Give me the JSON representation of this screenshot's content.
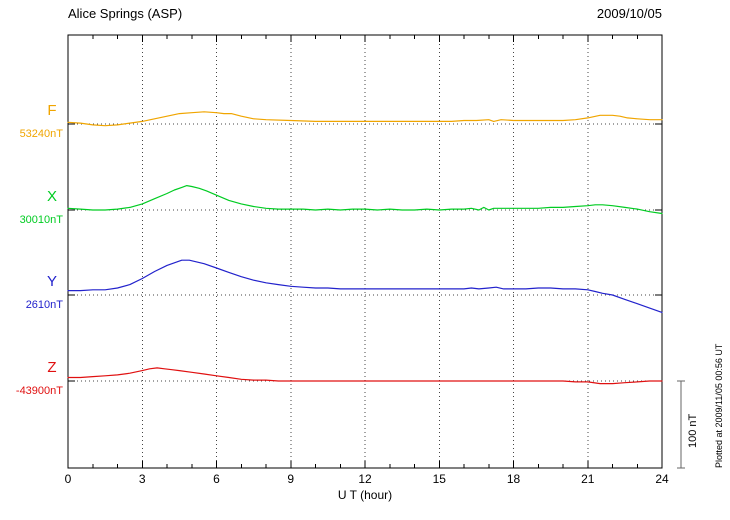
{
  "chart_data": {
    "type": "line",
    "title": "Alice Springs (ASP)",
    "date": "2009/10/05",
    "xlabel": "U T (hour)",
    "x_ticks": [
      0,
      3,
      6,
      9,
      12,
      15,
      18,
      21,
      24
    ],
    "xlim": [
      0,
      24
    ],
    "x_unit": "hour",
    "y_unit": "nT",
    "grid": "dotted vertical gridlines every 3 hours; dotted horizontal baseline per component",
    "legend_position": "left margin, one colored letter per trace with baseline value below",
    "scale_bar": {
      "label": "100 nT",
      "nT": 100
    },
    "plotted_at": "Plotted at 2009/11/05 00:56 UT",
    "points_format": "[UT hour, delta nT relative to component baseline]",
    "series": [
      {
        "name": "F",
        "color": "#F0A500",
        "baseline_label": "53240nT",
        "baseline_nT": 53240,
        "points": [
          [
            0,
            2
          ],
          [
            0.5,
            1
          ],
          [
            1,
            -1
          ],
          [
            1.5,
            -2
          ],
          [
            2,
            -1
          ],
          [
            2.5,
            1
          ],
          [
            3,
            3
          ],
          [
            3.5,
            6
          ],
          [
            4,
            9
          ],
          [
            4.5,
            12
          ],
          [
            5,
            13
          ],
          [
            5.5,
            14
          ],
          [
            6,
            13
          ],
          [
            6.3,
            12
          ],
          [
            6.6,
            12
          ],
          [
            7,
            9
          ],
          [
            7.5,
            6
          ],
          [
            8,
            5
          ],
          [
            9,
            4
          ],
          [
            10,
            3
          ],
          [
            11,
            3
          ],
          [
            12,
            3
          ],
          [
            13,
            3
          ],
          [
            14,
            3
          ],
          [
            15,
            3
          ],
          [
            15.5,
            3
          ],
          [
            16,
            4
          ],
          [
            16.5,
            4
          ],
          [
            17,
            5
          ],
          [
            17.2,
            3
          ],
          [
            17.5,
            5
          ],
          [
            18,
            4
          ],
          [
            18.5,
            4
          ],
          [
            19,
            4
          ],
          [
            19.5,
            4
          ],
          [
            20,
            4
          ],
          [
            20.5,
            5
          ],
          [
            21,
            7
          ],
          [
            21.5,
            10
          ],
          [
            22,
            10
          ],
          [
            22.3,
            9
          ],
          [
            22.6,
            7
          ],
          [
            23,
            6
          ],
          [
            23.5,
            5
          ],
          [
            24,
            5
          ]
        ]
      },
      {
        "name": "X",
        "color": "#00CC22",
        "baseline_label": "30010nT",
        "baseline_nT": 30010,
        "points": [
          [
            0,
            2
          ],
          [
            0.5,
            1
          ],
          [
            1,
            0
          ],
          [
            1.5,
            0
          ],
          [
            2,
            1
          ],
          [
            2.5,
            3
          ],
          [
            3,
            7
          ],
          [
            3.5,
            13
          ],
          [
            4,
            19
          ],
          [
            4.3,
            23
          ],
          [
            4.6,
            26
          ],
          [
            4.8,
            28
          ],
          [
            5,
            27
          ],
          [
            5.3,
            25
          ],
          [
            5.6,
            22
          ],
          [
            6,
            17
          ],
          [
            6.5,
            11
          ],
          [
            7,
            7
          ],
          [
            7.5,
            4
          ],
          [
            8,
            2
          ],
          [
            8.5,
            1
          ],
          [
            9,
            1
          ],
          [
            9.5,
            1
          ],
          [
            10,
            0
          ],
          [
            10.5,
            1
          ],
          [
            11,
            0
          ],
          [
            11.5,
            1
          ],
          [
            12,
            1
          ],
          [
            12.5,
            0
          ],
          [
            13,
            1
          ],
          [
            13.5,
            0
          ],
          [
            14,
            0
          ],
          [
            14.5,
            1
          ],
          [
            15,
            0
          ],
          [
            15.5,
            1
          ],
          [
            16,
            1
          ],
          [
            16.3,
            2
          ],
          [
            16.6,
            0
          ],
          [
            16.8,
            3
          ],
          [
            17,
            0
          ],
          [
            17.2,
            2
          ],
          [
            17.5,
            2
          ],
          [
            18,
            2
          ],
          [
            18.5,
            2
          ],
          [
            19,
            2
          ],
          [
            19.5,
            3
          ],
          [
            20,
            3
          ],
          [
            20.5,
            4
          ],
          [
            21,
            5
          ],
          [
            21.3,
            6
          ],
          [
            21.6,
            6
          ],
          [
            22,
            5
          ],
          [
            22.5,
            3
          ],
          [
            23,
            1
          ],
          [
            23.5,
            -2
          ],
          [
            24,
            -4
          ]
        ]
      },
      {
        "name": "Y",
        "color": "#2222CC",
        "baseline_label": "2610nT",
        "baseline_nT": 2610,
        "points": [
          [
            0,
            5
          ],
          [
            0.5,
            5
          ],
          [
            1,
            6
          ],
          [
            1.5,
            6
          ],
          [
            2,
            8
          ],
          [
            2.5,
            12
          ],
          [
            3,
            19
          ],
          [
            3.5,
            27
          ],
          [
            4,
            34
          ],
          [
            4.3,
            37
          ],
          [
            4.6,
            40
          ],
          [
            4.9,
            40
          ],
          [
            5.2,
            38
          ],
          [
            5.5,
            36
          ],
          [
            6,
            31
          ],
          [
            6.5,
            26
          ],
          [
            7,
            21
          ],
          [
            7.5,
            17
          ],
          [
            8,
            14
          ],
          [
            8.5,
            12
          ],
          [
            9,
            10
          ],
          [
            9.5,
            9
          ],
          [
            10,
            8
          ],
          [
            10.5,
            8
          ],
          [
            11,
            7
          ],
          [
            11.5,
            7
          ],
          [
            12,
            7
          ],
          [
            12.5,
            7
          ],
          [
            13,
            7
          ],
          [
            13.5,
            7
          ],
          [
            14,
            7
          ],
          [
            14.5,
            7
          ],
          [
            15,
            7
          ],
          [
            15.5,
            7
          ],
          [
            16,
            7
          ],
          [
            16.3,
            8
          ],
          [
            16.6,
            7
          ],
          [
            17,
            8
          ],
          [
            17.3,
            9
          ],
          [
            17.6,
            7
          ],
          [
            18,
            7
          ],
          [
            18.5,
            7
          ],
          [
            19,
            8
          ],
          [
            19.5,
            8
          ],
          [
            20,
            7
          ],
          [
            20.5,
            7
          ],
          [
            21,
            6
          ],
          [
            21.3,
            4
          ],
          [
            21.6,
            2
          ],
          [
            22,
            0
          ],
          [
            22.5,
            -5
          ],
          [
            23,
            -10
          ],
          [
            23.5,
            -15
          ],
          [
            24,
            -20
          ]
        ]
      },
      {
        "name": "Z",
        "color": "#E01010",
        "baseline_label": "-43900nT",
        "baseline_nT": -43900,
        "points": [
          [
            0,
            4
          ],
          [
            0.5,
            4
          ],
          [
            1,
            5
          ],
          [
            1.5,
            6
          ],
          [
            2,
            7
          ],
          [
            2.5,
            9
          ],
          [
            3,
            12
          ],
          [
            3.3,
            14
          ],
          [
            3.6,
            15
          ],
          [
            3.9,
            14
          ],
          [
            4.2,
            13
          ],
          [
            4.5,
            12
          ],
          [
            5,
            10
          ],
          [
            5.5,
            8
          ],
          [
            6,
            6
          ],
          [
            6.5,
            4
          ],
          [
            7,
            2
          ],
          [
            7.5,
            1
          ],
          [
            8,
            1
          ],
          [
            8.5,
            0
          ],
          [
            9,
            0
          ],
          [
            10,
            0
          ],
          [
            11,
            0
          ],
          [
            12,
            0
          ],
          [
            13,
            0
          ],
          [
            14,
            0
          ],
          [
            15,
            0
          ],
          [
            16,
            0
          ],
          [
            17,
            0
          ],
          [
            18,
            0
          ],
          [
            19,
            0
          ],
          [
            20,
            0
          ],
          [
            20.5,
            -1
          ],
          [
            21,
            -1
          ],
          [
            21.5,
            -3
          ],
          [
            22,
            -3
          ],
          [
            22.5,
            -2
          ],
          [
            23,
            -1
          ],
          [
            23.5,
            0
          ],
          [
            24,
            0
          ]
        ]
      }
    ]
  }
}
